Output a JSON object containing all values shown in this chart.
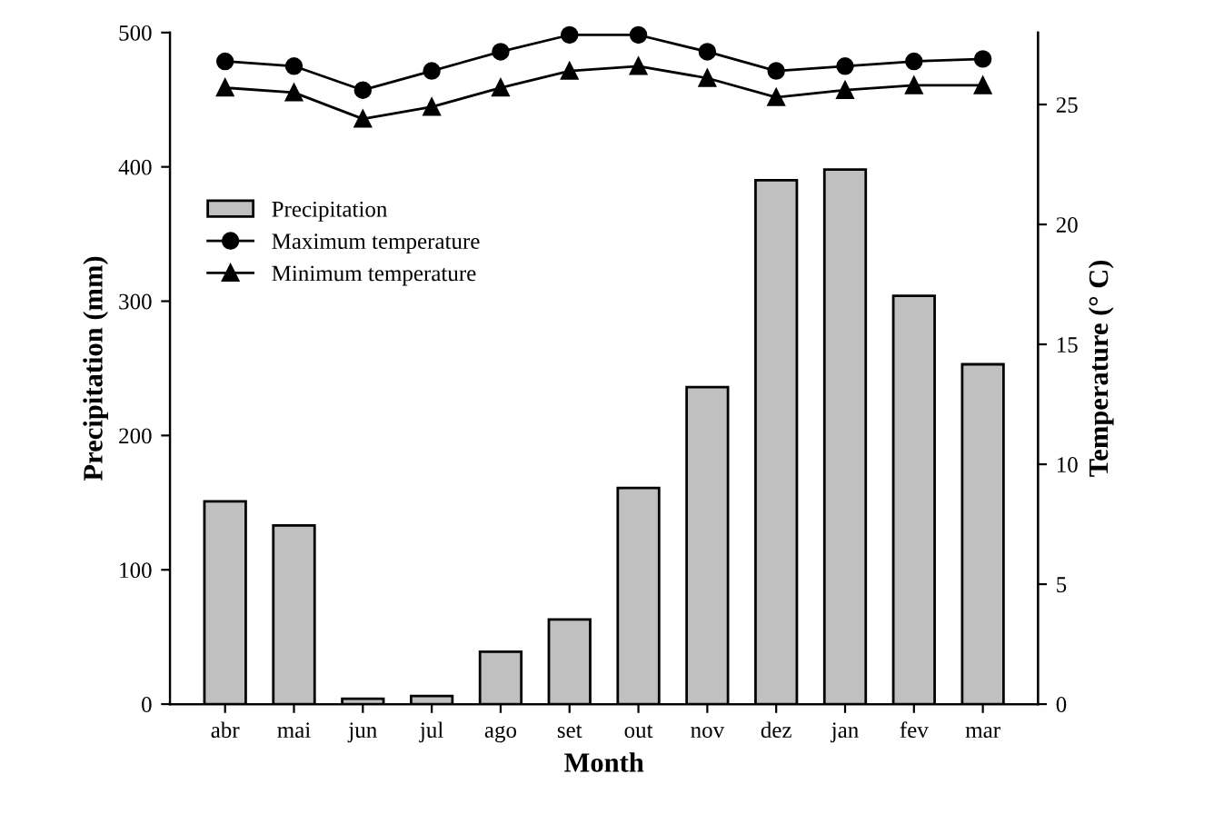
{
  "chart_data": {
    "type": "bar",
    "xlabel": "Month",
    "ylabel": "Precipitation (mm)",
    "y2label": "Temperature (° C)",
    "categories": [
      "abr",
      "mai",
      "jun",
      "jul",
      "ago",
      "set",
      "out",
      "nov",
      "dez",
      "jan",
      "fev",
      "mar"
    ],
    "series": [
      {
        "name": "Precipitation",
        "color": "#c0c0c0",
        "values": [
          151,
          133,
          4,
          6,
          39,
          63,
          161,
          236,
          390,
          398,
          304,
          253
        ]
      },
      {
        "name": "Maximum temperature",
        "type": "line",
        "axis": "y2",
        "marker": "circle",
        "color": "#000000",
        "values": [
          26.8,
          26.6,
          25.6,
          26.4,
          27.2,
          27.9,
          27.9,
          27.2,
          26.4,
          26.6,
          26.8,
          26.9
        ]
      },
      {
        "name": "Minimum temperature",
        "type": "line",
        "axis": "y2",
        "marker": "triangle",
        "color": "#000000",
        "values": [
          25.7,
          25.5,
          24.4,
          24.9,
          25.7,
          26.4,
          26.6,
          26.1,
          25.3,
          25.6,
          25.8,
          25.8
        ]
      }
    ],
    "ylim": [
      0,
      500
    ],
    "yticks": [
      0,
      100,
      200,
      300,
      400,
      500
    ],
    "y2lim": [
      0,
      28
    ],
    "y2ticks": [
      0,
      5,
      10,
      15,
      20,
      25
    ],
    "legend": "top left",
    "grid": false
  }
}
